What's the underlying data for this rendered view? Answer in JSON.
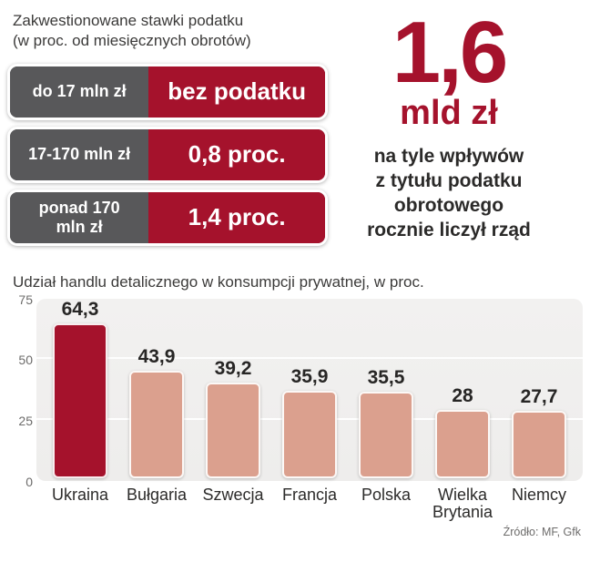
{
  "colors": {
    "accent_red": "#a5122c",
    "salmon": "#dba08e",
    "gray_cell": "#58585a",
    "plot_bg": "#efeeec"
  },
  "tax_table": {
    "title": "Zakwestionowane stawki podatku\n(w proc. od miesięcznych obrotów)",
    "rows": [
      {
        "range": "do 17 mln zł",
        "rate": "bez podatku"
      },
      {
        "range": "17-170 mln zł",
        "rate": "0,8 proc."
      },
      {
        "range": "ponad 170\nmln zł",
        "rate": "1,4 proc."
      }
    ]
  },
  "callout": {
    "big_number": "1,6",
    "unit": "mld zł",
    "description": "na tyle wpływów\nz tytułu podatku\nobrotowego\nrocznie liczył rząd"
  },
  "chart_data": {
    "type": "bar",
    "title": "Udział handlu detalicznego w konsumpcji prywatnej, w proc.",
    "categories": [
      "Ukraina",
      "Bułgaria",
      "Szwecja",
      "Francja",
      "Polska",
      "Wielka Brytania",
      "Niemcy"
    ],
    "values": [
      64.3,
      43.9,
      39.2,
      35.9,
      35.5,
      28,
      27.7
    ],
    "value_labels": [
      "64,3",
      "43,9",
      "39,2",
      "35,9",
      "35,5",
      "28",
      "27,7"
    ],
    "highlight_index": 0,
    "highlight_color": "#a5122c",
    "bar_color": "#dba08e",
    "ylim": [
      0,
      75
    ],
    "yticks": [
      75,
      50,
      25,
      0
    ],
    "grid": true,
    "legend": "none",
    "source": "Źródło: MF, Gfk"
  }
}
